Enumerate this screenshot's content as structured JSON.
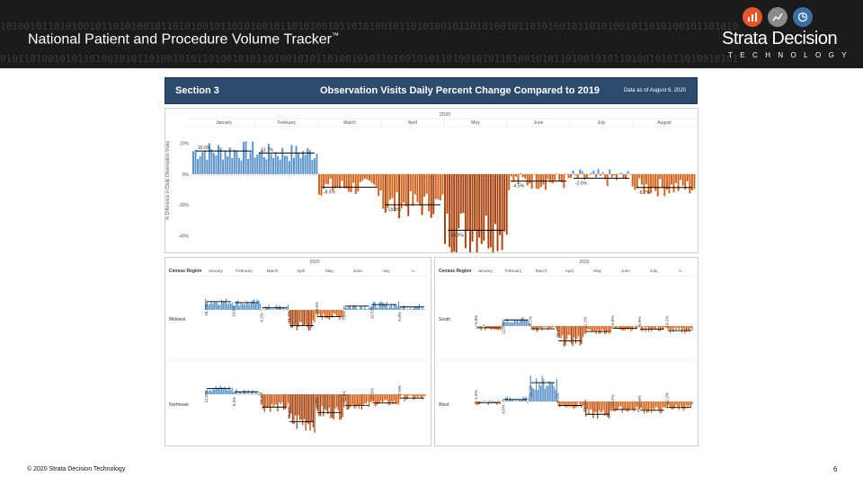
{
  "header": {
    "title": "National Patient and Procedure Volume Tracker",
    "title_mark": "™",
    "binary_rows": [
      "1010010110101001011010100101101010010110101001011010100101101010010110101001011010100101101010010110101001011010100101101010",
      "0101101001010110100101011010010101101001010110100101011010010101101001010110100101011010010101101001010110100101011010010101",
      "1101010010110101001011010100101101010010110101001011010100101101010010110101001011010100101101010010110101001011010100101101",
      "0010101101001010110100101011010010101101001010110100101011010010101101001010110100101011010010101101001010110100101011010010",
      "1011010100101101010010110101001011010100101101010010110101001011010100101101010010110101001011010100101101010010110101001011",
      "0100101011010010101101001010110100101011010010101101001010110100101011010010101101001010110100101011010010101101001010110100",
      "1010110100101011010010101101001010110100101011010010101101001010110100101011010010101101001010110100101011010010101101001010"
    ]
  },
  "brand": {
    "name": "Strata Decision",
    "tagline": "TECHNOLOGY",
    "icons": [
      "bar-chart-icon",
      "trend-line-icon",
      "clock-icon"
    ],
    "icon_colors": [
      "#e2572b",
      "#8a8a8a",
      "#3b6ea5"
    ]
  },
  "section": {
    "label": "Section 3",
    "title": "Observation Visits Daily Percent Change Compared to 2019",
    "date_note": "Data as of August 6, 2020"
  },
  "footer": {
    "copyright": "© 2020 Strata Decision Technology",
    "page_number": "6"
  },
  "colors": {
    "positive": "#5b93c9",
    "negative": "#d2631c",
    "negative_dark": "#a8430f",
    "refline": "#000000"
  },
  "chart_data": [
    {
      "type": "bar",
      "year": "2020",
      "months": [
        "January",
        "February",
        "March",
        "April",
        "May",
        "June",
        "July",
        "August"
      ],
      "ylabel": "% Difference in Daily Observation Visits",
      "yticks": [
        "20%",
        "0%",
        "-20%",
        "-40%"
      ],
      "ylim": [
        -45,
        25
      ],
      "period_averages": [
        {
          "label": "15.0%",
          "value": 15.0
        },
        {
          "label": "13.7%",
          "value": 13.7
        },
        {
          "label": "-8.5%",
          "value": -8.5
        },
        {
          "label": "-19.9%",
          "value": -19.9
        },
        {
          "label": "-36.5%",
          "value": -36.5
        },
        {
          "label": "-4.5%",
          "value": -4.5
        },
        {
          "label": "-2.6%",
          "value": -2.6
        },
        {
          "label": "-8.7%",
          "value": -8.7
        }
      ]
    },
    {
      "type": "bar",
      "region": "Midwest",
      "header": "Census Region",
      "year": "2020",
      "months": [
        "January",
        "February",
        "March",
        "April",
        "May",
        "June",
        "July",
        "A..."
      ],
      "value_labels": [
        "16.7%",
        "14.6%",
        "4.1%",
        "-31.9%",
        "-13.6%",
        "7.6%",
        "10.5%",
        "5.9%"
      ]
    },
    {
      "type": "bar",
      "region": "South",
      "header": "Census Region",
      "year": "2020",
      "months": [
        "January",
        "February",
        "March",
        "April",
        "May",
        "June",
        "July",
        "A..."
      ],
      "value_labels": [
        "-3.8%",
        "13.5%",
        "-6.2%",
        "-32.8%",
        "-12.1%",
        "-4.9%",
        "-6.9%",
        "-10.2%"
      ]
    },
    {
      "type": "bar",
      "region": "Northeast",
      "header": "Census Region",
      "year": "2020",
      "months": [
        "January",
        "February",
        "March",
        "April",
        "May",
        "June",
        "July",
        "A..."
      ],
      "value_labels": [
        "12.0%",
        "5.0%",
        "-25.9%",
        "-55.5%",
        "-36.9%",
        "-22.4%",
        "-17.6%",
        "-7.6%"
      ]
    },
    {
      "type": "bar",
      "region": "West",
      "header": "Census Region",
      "year": "2020",
      "months": [
        "January",
        "February",
        "March",
        "April",
        "May",
        "June",
        "July",
        "A..."
      ],
      "value_labels": [
        "-2.4%",
        "4.0%",
        "38.1%",
        "-8.2%",
        "-25.9%",
        "-16.2%",
        "-17.8%",
        "-12.2%"
      ]
    }
  ]
}
